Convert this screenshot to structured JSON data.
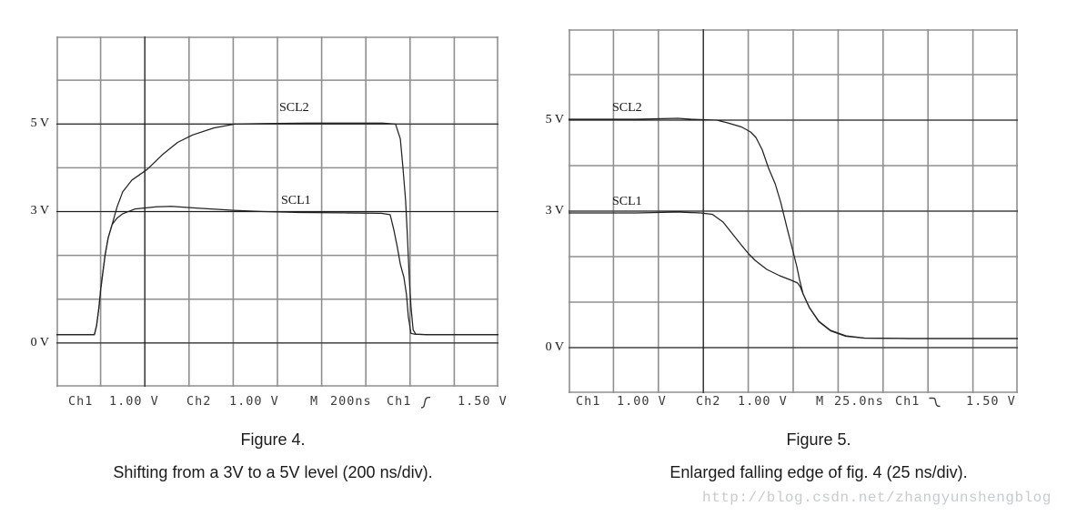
{
  "colors": {
    "background": "#ffffff",
    "grid_line": "#8f8f8f",
    "reference_line": "#1c1c1c",
    "trace": "#222222",
    "label_text": "#141414",
    "status_text": "#3c3c3c",
    "caption_text": "#1a1a1a",
    "watermark_text": "#c7cbce"
  },
  "watermark": {
    "text": "http://blog.csdn.net/zhangyunshengblog"
  },
  "figures": [
    {
      "y_labels": {
        "v5": "5 V",
        "v3": "3 V",
        "v0": "0 V"
      },
      "trace_labels": {
        "scl2": "SCL2",
        "scl1": "SCL1"
      },
      "status": {
        "ch1": "Ch1",
        "ch1_scale": "1.00 V",
        "ch2": "Ch2",
        "ch2_scale": "1.00 V",
        "m": "M",
        "timebase": "200ns",
        "trig_source": "Ch1",
        "trig_edge": "rising-edge",
        "trig_level": "1.50 V"
      },
      "caption_line1": "Figure 4.",
      "caption_line2": "Shifting from a 3V to a 5V level (200 ns/div)."
    },
    {
      "y_labels": {
        "v5": "5 V",
        "v3": "3 V",
        "v0": "0 V"
      },
      "trace_labels": {
        "scl2": "SCL2",
        "scl1": "SCL1"
      },
      "status": {
        "ch1": "Ch1",
        "ch1_scale": "1.00 V",
        "ch2": "Ch2",
        "ch2_scale": "1.00 V",
        "m": "M",
        "timebase": "25.0ns",
        "trig_source": "Ch1",
        "trig_edge": "falling-edge",
        "trig_level": "1.50 V"
      },
      "caption_line1": "Figure 5.",
      "caption_line2": "Enlarged falling edge of fig. 4 (25 ns/div)."
    }
  ],
  "chart_data": [
    {
      "type": "line",
      "title": "Figure 4.",
      "subtitle": "Shifting from a 3V to a 5V level (200 ns/div).",
      "xlabel": "",
      "ylabel": "",
      "x_unit": "divisions",
      "time_per_div": "200 ns",
      "volts_per_div": 1.0,
      "xlim": [
        0,
        10
      ],
      "ylim": [
        -1,
        7
      ],
      "grid": {
        "cols": 10,
        "rows": 8,
        "on": true
      },
      "y_tick_labels": [
        {
          "label": "5 V",
          "v": 5
        },
        {
          "label": "3 V",
          "v": 3
        },
        {
          "label": "0 V",
          "v": 0
        }
      ],
      "reference_h_volts": [
        5,
        3,
        0
      ],
      "reference_x_div": 2,
      "legend_position": "inline-labels",
      "series": [
        {
          "name": "SCL2",
          "points": [
            [
              0,
              0.19
            ],
            [
              0.86,
              0.19
            ],
            [
              0.91,
              0.4
            ],
            [
              0.96,
              0.8
            ],
            [
              1.0,
              1.2
            ],
            [
              1.05,
              1.6
            ],
            [
              1.1,
              2.0
            ],
            [
              1.17,
              2.4
            ],
            [
              1.26,
              2.7
            ],
            [
              1.37,
              3.1
            ],
            [
              1.5,
              3.45
            ],
            [
              1.71,
              3.72
            ],
            [
              2.05,
              3.96
            ],
            [
              2.4,
              4.3
            ],
            [
              2.74,
              4.58
            ],
            [
              3.08,
              4.75
            ],
            [
              3.56,
              4.91
            ],
            [
              4.04,
              5.0
            ],
            [
              4.7,
              5.01
            ],
            [
              5.7,
              5.02
            ],
            [
              7.37,
              5.02
            ],
            [
              7.67,
              5.0
            ],
            [
              7.78,
              4.66
            ],
            [
              7.84,
              4.0
            ],
            [
              7.9,
              3.25
            ],
            [
              7.94,
              2.43
            ],
            [
              7.98,
              1.54
            ],
            [
              8.02,
              0.83
            ],
            [
              8.07,
              0.3
            ],
            [
              8.13,
              0.2
            ],
            [
              8.4,
              0.19
            ],
            [
              10,
              0.19
            ]
          ]
        },
        {
          "name": "SCL1",
          "points": [
            [
              0,
              0.19
            ],
            [
              0.86,
              0.19
            ],
            [
              0.91,
              0.4
            ],
            [
              0.96,
              0.8
            ],
            [
              1.0,
              1.2
            ],
            [
              1.05,
              1.6
            ],
            [
              1.1,
              2.0
            ],
            [
              1.17,
              2.4
            ],
            [
              1.26,
              2.7
            ],
            [
              1.37,
              2.85
            ],
            [
              1.5,
              2.95
            ],
            [
              1.78,
              3.06
            ],
            [
              2.26,
              3.11
            ],
            [
              2.6,
              3.12
            ],
            [
              3.2,
              3.08
            ],
            [
              4.0,
              3.03
            ],
            [
              4.7,
              3.0
            ],
            [
              5.5,
              2.98
            ],
            [
              6.5,
              2.97
            ],
            [
              7.35,
              2.96
            ],
            [
              7.55,
              2.93
            ],
            [
              7.63,
              2.6
            ],
            [
              7.71,
              2.2
            ],
            [
              7.78,
              1.8
            ],
            [
              7.86,
              1.5
            ],
            [
              7.92,
              1.1
            ],
            [
              7.96,
              0.6
            ],
            [
              8.02,
              0.22
            ],
            [
              8.11,
              0.2
            ],
            [
              8.4,
              0.19
            ],
            [
              10,
              0.19
            ]
          ]
        }
      ]
    },
    {
      "type": "line",
      "title": "Figure 5.",
      "subtitle": "Enlarged falling edge of fig. 4 (25 ns/div).",
      "xlabel": "",
      "ylabel": "",
      "x_unit": "divisions",
      "time_per_div": "25.0 ns",
      "volts_per_div": 1.0,
      "xlim": [
        0,
        10
      ],
      "ylim": [
        -1,
        7
      ],
      "grid": {
        "cols": 10,
        "rows": 8,
        "on": true
      },
      "y_tick_labels": [
        {
          "label": "5 V",
          "v": 5
        },
        {
          "label": "3 V",
          "v": 3
        },
        {
          "label": "0 V",
          "v": 0
        }
      ],
      "reference_h_volts": [
        5,
        3,
        0
      ],
      "reference_x_div": 3,
      "legend_position": "inline-labels",
      "series": [
        {
          "name": "SCL2",
          "points": [
            [
              0,
              5.02
            ],
            [
              1.52,
              5.02
            ],
            [
              2.43,
              5.04
            ],
            [
              2.73,
              5.02
            ],
            [
              3.3,
              5.0
            ],
            [
              3.54,
              4.94
            ],
            [
              3.85,
              4.85
            ],
            [
              4.05,
              4.74
            ],
            [
              4.17,
              4.62
            ],
            [
              4.31,
              4.35
            ],
            [
              4.45,
              3.95
            ],
            [
              4.6,
              3.6
            ],
            [
              4.72,
              3.2
            ],
            [
              4.86,
              2.64
            ],
            [
              5.0,
              2.1
            ],
            [
              5.08,
              1.78
            ],
            [
              5.14,
              1.5
            ],
            [
              5.22,
              1.18
            ],
            [
              5.36,
              0.88
            ],
            [
              5.57,
              0.58
            ],
            [
              5.83,
              0.38
            ],
            [
              6.17,
              0.26
            ],
            [
              6.58,
              0.21
            ],
            [
              7.59,
              0.2
            ],
            [
              10,
              0.2
            ]
          ]
        },
        {
          "name": "SCL1",
          "points": [
            [
              0,
              2.96
            ],
            [
              1.52,
              2.96
            ],
            [
              2.43,
              2.98
            ],
            [
              2.94,
              2.96
            ],
            [
              3.2,
              2.93
            ],
            [
              3.44,
              2.76
            ],
            [
              3.68,
              2.46
            ],
            [
              3.89,
              2.2
            ],
            [
              4.01,
              2.06
            ],
            [
              4.15,
              1.92
            ],
            [
              4.41,
              1.72
            ],
            [
              4.7,
              1.58
            ],
            [
              4.96,
              1.48
            ],
            [
              5.1,
              1.42
            ],
            [
              5.16,
              1.33
            ],
            [
              5.22,
              1.18
            ],
            [
              5.36,
              0.88
            ],
            [
              5.57,
              0.57
            ],
            [
              5.83,
              0.37
            ],
            [
              6.17,
              0.25
            ],
            [
              6.58,
              0.21
            ],
            [
              7.59,
              0.2
            ],
            [
              10,
              0.2
            ]
          ]
        }
      ]
    }
  ]
}
